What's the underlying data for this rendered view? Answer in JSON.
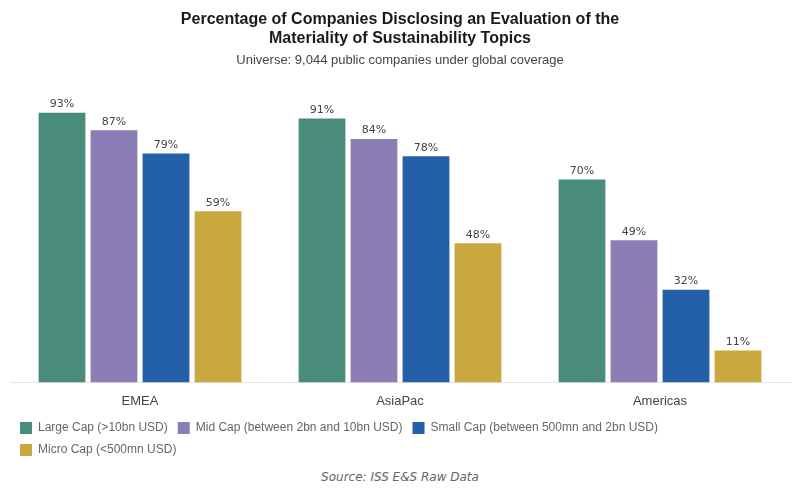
{
  "chart_data": {
    "type": "bar",
    "title": "Percentage of Companies Disclosing an Evaluation of the\nMateriality of Sustainability Topics",
    "subtitle": "Universe: 9,044 public companies under global coverage",
    "annotations": [
      "Source: ISS E&S Raw Data"
    ],
    "categories": [
      "EMEA",
      "AsiaPac",
      "Americas"
    ],
    "series": [
      {
        "name": "Large Cap (>10bn USD)",
        "color": "#4a8c7c",
        "values": [
          93,
          91,
          70
        ],
        "value_labels": [
          "93%",
          "91%",
          "70%"
        ]
      },
      {
        "name": "Mid Cap (between 2bn and 10bn USD)",
        "color": "#8b7db5",
        "values": [
          87,
          84,
          49
        ],
        "value_labels": [
          "87%",
          "84%",
          "49%"
        ]
      },
      {
        "name": "Small Cap (between 500mn and 2bn USD)",
        "color": "#2460a7",
        "values": [
          79,
          78,
          32
        ],
        "value_labels": [
          "79%",
          "78%",
          "32%"
        ]
      },
      {
        "name": "Micro Cap (<500mn USD)",
        "color": "#c9a840",
        "values": [
          59,
          48,
          11
        ],
        "value_labels": [
          "59%",
          "48%",
          "11%"
        ]
      }
    ],
    "ylim": [
      0,
      105
    ],
    "data_labels": true,
    "tick_labels": "x",
    "grid": false,
    "legend": "bottom"
  }
}
